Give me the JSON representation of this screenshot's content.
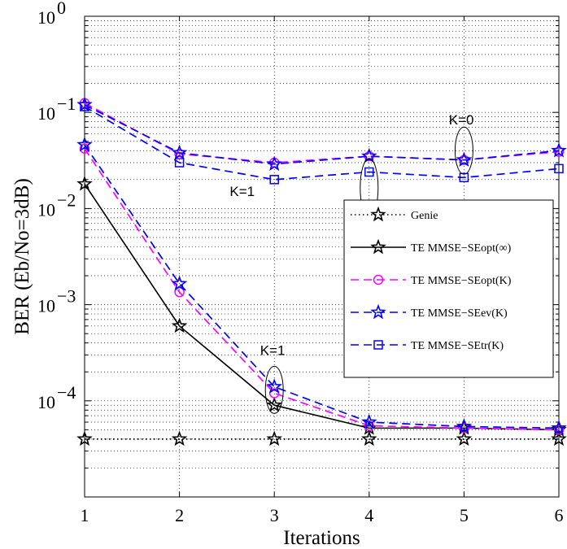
{
  "chart_data": {
    "type": "line",
    "title": "",
    "xlabel": "Iterations",
    "ylabel": "BER (Eb/No=3dB)",
    "x": [
      1,
      2,
      3,
      4,
      5,
      6
    ],
    "xlim": [
      1,
      6
    ],
    "ylim": [
      1e-05,
      1
    ],
    "yscale": "log",
    "grid": true,
    "legend_position": "right-middle",
    "xticks": [
      "1",
      "2",
      "3",
      "4",
      "5",
      "6"
    ],
    "yticks": [
      {
        "base": "10",
        "exp": "0",
        "value": 1
      },
      {
        "base": "10",
        "exp": "−1",
        "value": 0.1
      },
      {
        "base": "10",
        "exp": "−2",
        "value": 0.01
      },
      {
        "base": "10",
        "exp": "−3",
        "value": 0.001
      },
      {
        "base": "10",
        "exp": "−4",
        "value": 0.0001
      }
    ],
    "series": [
      {
        "name": "Genie",
        "values": [
          4e-05,
          4e-05,
          4e-05,
          4e-05,
          4e-05,
          4e-05
        ],
        "color": "#000000",
        "dash": "dotted",
        "marker": "star"
      },
      {
        "name": "TE MMSE−SEopt(∞)",
        "values": [
          0.018,
          0.0006,
          9e-05,
          5.2e-05,
          5.2e-05,
          5e-05
        ],
        "color": "#000000",
        "dash": "solid",
        "marker": "star"
      },
      {
        "name": "TE MMSE−SEopt(K)",
        "values": [
          0.042,
          0.00135,
          0.00012,
          5.5e-05,
          5.2e-05,
          5e-05
        ],
        "color": "#ff00ff",
        "dash": "dashed",
        "marker": "circle"
      },
      {
        "name": "TE MMSE−SEev(K)",
        "values": [
          0.046,
          0.00165,
          0.00014,
          6e-05,
          5.4e-05,
          5.2e-05
        ],
        "color": "#0000ff",
        "dash": "dashed",
        "marker": "star"
      },
      {
        "name": "TE MMSE−SEtr(K)",
        "values": [
          0.115,
          0.03,
          0.02,
          0.024,
          0.021,
          0.026
        ],
        "color": "#0000ff",
        "dash": "dashed",
        "marker": "square"
      },
      {
        "name": "TE MMSE−SEopt(K) (K=0)",
        "values": [
          0.125,
          0.037,
          0.03,
          0.035,
          0.032,
          0.039
        ],
        "color": "#ff00ff",
        "dash": "dashed",
        "marker": "circle"
      },
      {
        "name": "TE MMSE−SEev(K) (K=0)",
        "values": [
          0.12,
          0.038,
          0.029,
          0.035,
          0.032,
          0.04
        ],
        "color": "#0000ff",
        "dash": "dashed",
        "marker": "star"
      }
    ],
    "annotations": [
      {
        "text": "K=0",
        "x": 4.84,
        "y": 0.075
      },
      {
        "text": "K=1",
        "x": 2.53,
        "y": 0.0135
      },
      {
        "text": "K=1",
        "x": 2.85,
        "y": 0.0003
      }
    ],
    "ellipses": [
      {
        "x": 5.0,
        "y": 0.04
      },
      {
        "x": 4.0,
        "y": 0.0165
      },
      {
        "x": 3.0,
        "y": 0.00013
      }
    ]
  }
}
